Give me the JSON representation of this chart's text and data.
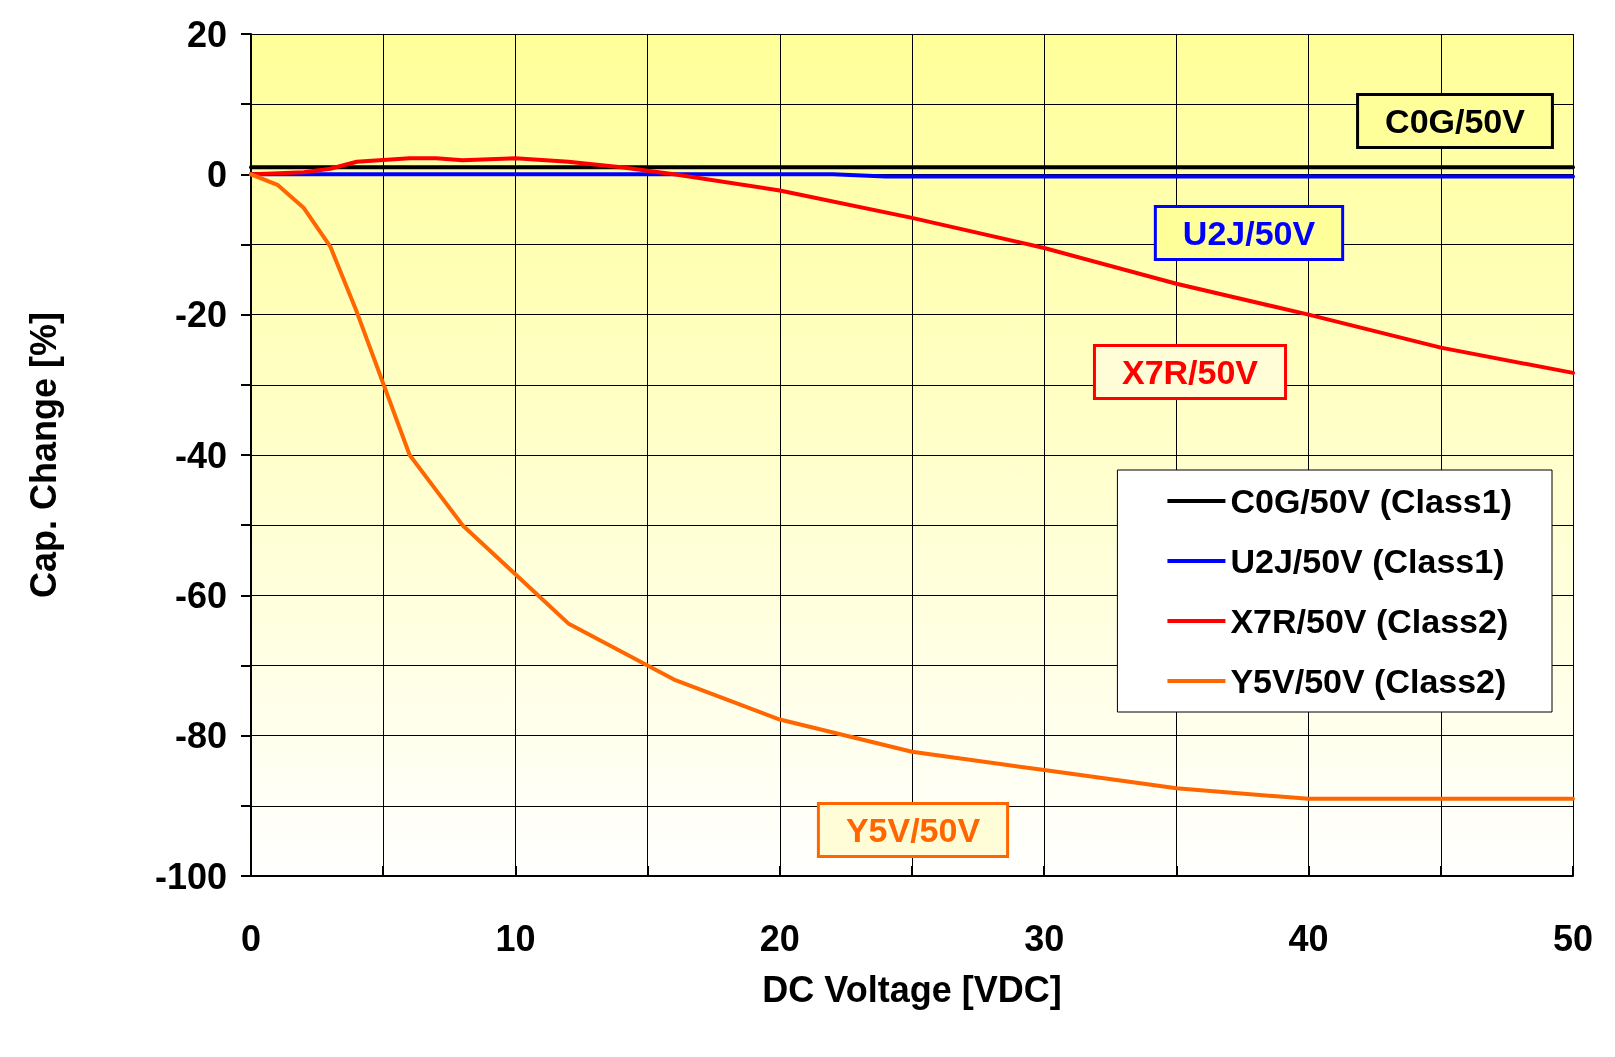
{
  "chart_data": {
    "type": "line",
    "xlabel": "DC Voltage [VDC]",
    "ylabel": "Cap. Change [%]",
    "xlim": [
      0,
      50
    ],
    "xticks": [
      0,
      10,
      20,
      30,
      40,
      50
    ],
    "ylim": [
      -100,
      20
    ],
    "yticks": [
      -100,
      -80,
      -60,
      -40,
      -20,
      0,
      20
    ],
    "grid": true,
    "legend": "right",
    "marker": "none",
    "line_style": "solid",
    "series": [
      {
        "name": "C0G/50V (Class1)",
        "color": "#000000",
        "x": [
          0,
          10,
          20,
          30,
          40,
          50
        ],
        "values": [
          1,
          1,
          1,
          1,
          1,
          1
        ]
      },
      {
        "name": "U2J/50V (Class1)",
        "color": "#0000ff",
        "x": [
          0,
          10,
          20,
          22,
          24,
          30,
          40,
          50
        ],
        "values": [
          0,
          0,
          0,
          0,
          -0.3,
          -0.3,
          -0.3,
          -0.3
        ]
      },
      {
        "name": "X7R/50V (Class2)",
        "color": "#ff0000",
        "x": [
          0,
          2,
          3,
          4,
          6,
          7,
          8,
          10,
          12,
          14,
          16,
          20,
          25,
          30,
          35,
          40,
          45,
          50
        ],
        "values": [
          0,
          0.3,
          0.8,
          1.8,
          2.3,
          2.3,
          2,
          2.3,
          1.8,
          1,
          0,
          -2.3,
          -6.2,
          -10.5,
          -15.6,
          -20,
          -24.7,
          -28.3
        ]
      },
      {
        "name": "Y5V/50V (Class2)",
        "color": "#ff6600",
        "x": [
          0,
          1,
          2,
          3,
          4,
          6,
          7,
          8,
          10,
          12,
          16,
          20,
          25,
          30,
          35,
          40,
          45,
          50
        ],
        "values": [
          0,
          -1.5,
          -4.8,
          -10.3,
          -19.6,
          -40,
          -45,
          -50,
          -57,
          -64,
          -72,
          -77.7,
          -82.3,
          -84.9,
          -87.5,
          -89,
          -89,
          -89
        ]
      }
    ],
    "annotations": [
      "C0G/50V",
      "U2J/50V",
      "X7R/50V",
      "Y5V/50V"
    ]
  }
}
